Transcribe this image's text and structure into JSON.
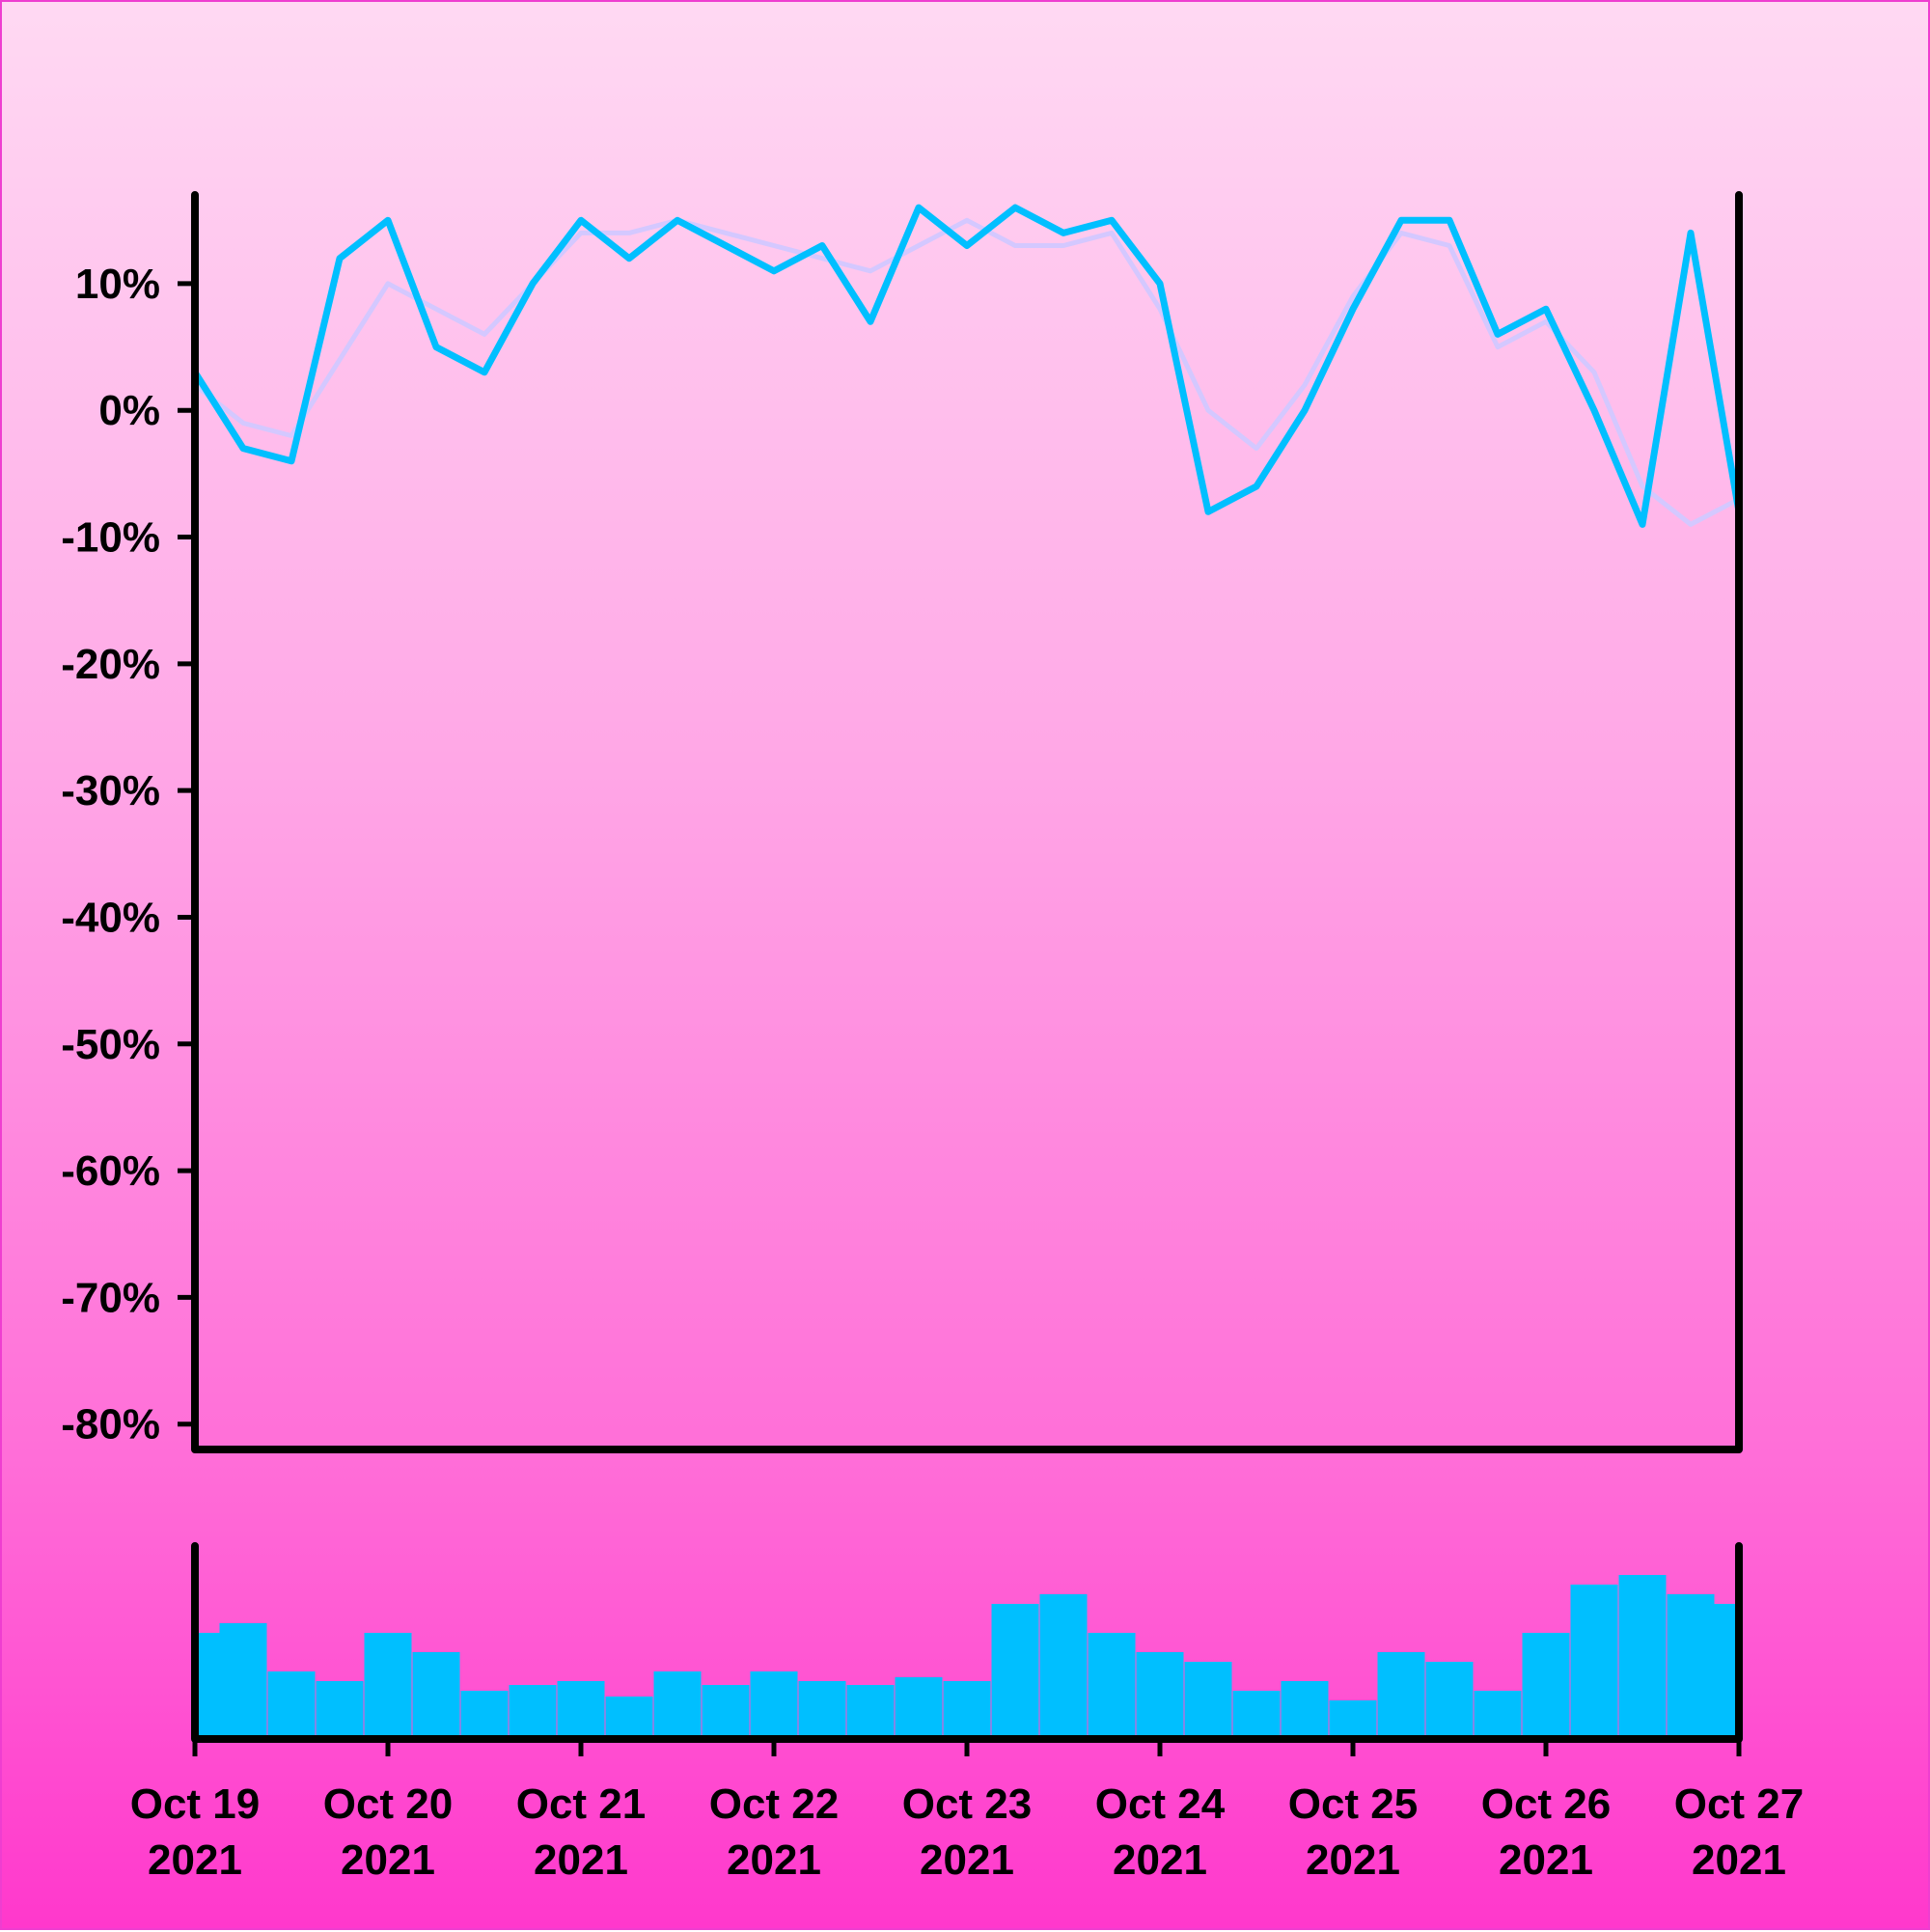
{
  "colors": {
    "price_line": "#00bfff",
    "moving_average": "#d4c8ff",
    "volume_bars": "#00bfff",
    "axes": "#000000",
    "background_top": "#ffd9f3",
    "background_bottom": "#ff38cc"
  },
  "chart_data": {
    "type": "line",
    "title": "",
    "xlabel": "",
    "ylabel": "",
    "ylim": [
      -0.82,
      0.17
    ],
    "y_ticks": [
      0.1,
      0.0,
      -0.1,
      -0.2,
      -0.3,
      -0.4,
      -0.5,
      -0.6,
      -0.7,
      -0.8
    ],
    "y_tick_labels": [
      "10%",
      "0%",
      "-10%",
      "-20%",
      "-30%",
      "-40%",
      "-50%",
      "-60%",
      "-70%",
      "-80%"
    ],
    "x_range": [
      "2021-10-19",
      "2021-10-27"
    ],
    "x_ticks": [
      "2021-10-19",
      "2021-10-20",
      "2021-10-21",
      "2021-10-22",
      "2021-10-23",
      "2021-10-24",
      "2021-10-25",
      "2021-10-26",
      "2021-10-27"
    ],
    "x_tick_labels": [
      {
        "line1": "Oct 19",
        "line2": "2021"
      },
      {
        "line1": "Oct 20",
        "line2": "2021"
      },
      {
        "line1": "Oct 21",
        "line2": "2021"
      },
      {
        "line1": "Oct 22",
        "line2": "2021"
      },
      {
        "line1": "Oct 23",
        "line2": "2021"
      },
      {
        "line1": "Oct 24",
        "line2": "2021"
      },
      {
        "line1": "Oct 25",
        "line2": "2021"
      },
      {
        "line1": "Oct 26",
        "line2": "2021"
      },
      {
        "line1": "Oct 27",
        "line2": "2021"
      }
    ],
    "grid": false,
    "legend": "none",
    "series": [
      {
        "role": "price",
        "x": [
          "2021-10-19 00:00",
          "2021-10-19 06:00",
          "2021-10-19 12:00",
          "2021-10-19 18:00",
          "2021-10-20 00:00",
          "2021-10-20 06:00",
          "2021-10-20 12:00",
          "2021-10-20 18:00",
          "2021-10-21 00:00",
          "2021-10-21 06:00",
          "2021-10-21 12:00",
          "2021-10-21 18:00",
          "2021-10-22 00:00",
          "2021-10-22 06:00",
          "2021-10-22 12:00",
          "2021-10-22 18:00",
          "2021-10-23 00:00",
          "2021-10-23 06:00",
          "2021-10-23 12:00",
          "2021-10-23 18:00",
          "2021-10-24 00:00",
          "2021-10-24 06:00",
          "2021-10-24 12:00",
          "2021-10-24 18:00",
          "2021-10-25 00:00",
          "2021-10-25 06:00",
          "2021-10-25 12:00",
          "2021-10-25 18:00",
          "2021-10-26 00:00",
          "2021-10-26 06:00",
          "2021-10-26 12:00",
          "2021-10-26 18:00",
          "2021-10-27 00:00"
        ],
        "values": [
          0.03,
          -0.03,
          -0.04,
          0.12,
          0.15,
          0.05,
          0.03,
          0.1,
          0.15,
          0.12,
          0.15,
          0.13,
          0.11,
          0.13,
          0.07,
          0.16,
          0.13,
          0.16,
          0.14,
          0.15,
          0.1,
          -0.08,
          -0.06,
          0.0,
          0.08,
          0.15,
          0.15,
          0.06,
          0.08,
          0.0,
          -0.09,
          0.14,
          -0.08
        ]
      },
      {
        "role": "moving_average",
        "x": [
          "2021-10-19 00:00",
          "2021-10-19 06:00",
          "2021-10-19 12:00",
          "2021-10-19 18:00",
          "2021-10-20 00:00",
          "2021-10-20 06:00",
          "2021-10-20 12:00",
          "2021-10-20 18:00",
          "2021-10-21 00:00",
          "2021-10-21 06:00",
          "2021-10-21 12:00",
          "2021-10-21 18:00",
          "2021-10-22 00:00",
          "2021-10-22 06:00",
          "2021-10-22 12:00",
          "2021-10-22 18:00",
          "2021-10-23 00:00",
          "2021-10-23 06:00",
          "2021-10-23 12:00",
          "2021-10-23 18:00",
          "2021-10-24 00:00",
          "2021-10-24 06:00",
          "2021-10-24 12:00",
          "2021-10-24 18:00",
          "2021-10-25 00:00",
          "2021-10-25 06:00",
          "2021-10-25 12:00",
          "2021-10-25 18:00",
          "2021-10-26 00:00",
          "2021-10-26 06:00",
          "2021-10-26 12:00",
          "2021-10-26 18:00",
          "2021-10-27 00:00"
        ],
        "values": [
          0.02,
          -0.01,
          -0.02,
          0.04,
          0.1,
          0.08,
          0.06,
          0.1,
          0.14,
          0.14,
          0.15,
          0.14,
          0.13,
          0.12,
          0.11,
          0.13,
          0.15,
          0.13,
          0.13,
          0.14,
          0.08,
          0.0,
          -0.03,
          0.02,
          0.09,
          0.14,
          0.13,
          0.05,
          0.07,
          0.03,
          -0.06,
          -0.09,
          -0.07
        ]
      },
      {
        "role": "volume",
        "x": [
          "2021-10-19 00:00",
          "2021-10-19 06:00",
          "2021-10-19 12:00",
          "2021-10-19 18:00",
          "2021-10-20 00:00",
          "2021-10-20 06:00",
          "2021-10-20 12:00",
          "2021-10-20 18:00",
          "2021-10-21 00:00",
          "2021-10-21 06:00",
          "2021-10-21 12:00",
          "2021-10-21 18:00",
          "2021-10-22 00:00",
          "2021-10-22 06:00",
          "2021-10-22 12:00",
          "2021-10-22 18:00",
          "2021-10-23 00:00",
          "2021-10-23 06:00",
          "2021-10-23 12:00",
          "2021-10-23 18:00",
          "2021-10-24 00:00",
          "2021-10-24 06:00",
          "2021-10-24 12:00",
          "2021-10-24 18:00",
          "2021-10-25 00:00",
          "2021-10-25 06:00",
          "2021-10-25 12:00",
          "2021-10-25 18:00",
          "2021-10-26 00:00",
          "2021-10-26 06:00",
          "2021-10-26 12:00",
          "2021-10-26 18:00",
          "2021-10-27 00:00"
        ],
        "values": [
          0.55,
          0.6,
          0.35,
          0.3,
          0.55,
          0.45,
          0.25,
          0.28,
          0.3,
          0.22,
          0.35,
          0.28,
          0.35,
          0.3,
          0.28,
          0.32,
          0.3,
          0.7,
          0.75,
          0.55,
          0.45,
          0.4,
          0.25,
          0.3,
          0.2,
          0.45,
          0.4,
          0.25,
          0.55,
          0.8,
          0.85,
          0.75,
          0.7
        ]
      }
    ]
  }
}
